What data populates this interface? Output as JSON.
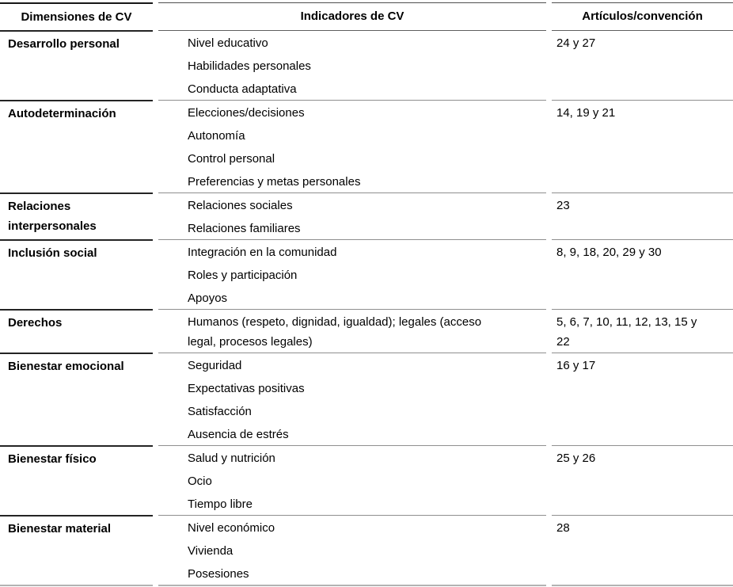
{
  "table": {
    "columns": [
      "Dimensiones de CV",
      "Indicadores de CV",
      "Artículos/convención"
    ],
    "rows": [
      {
        "dimension": "Desarrollo personal",
        "indicators": [
          "Nivel educativo",
          "Habilidades personales",
          "Conducta adaptativa"
        ],
        "articles": "24 y 27"
      },
      {
        "dimension": "Autodeterminación",
        "indicators": [
          "Elecciones/decisiones",
          "Autonomía",
          "Control personal",
          "Preferencias y metas personales"
        ],
        "articles": "14, 19 y 21"
      },
      {
        "dimension": "Relaciones interpersonales",
        "indicators": [
          "Relaciones sociales",
          "Relaciones familiares"
        ],
        "articles": "23"
      },
      {
        "dimension": "Inclusión social",
        "indicators": [
          "Integración en la comunidad",
          "Roles y participación",
          "Apoyos"
        ],
        "articles": "8, 9, 18, 20, 29 y 30"
      },
      {
        "dimension": "Derechos",
        "indicators": [
          "Humanos (respeto, dignidad, igualdad); legales (acceso legal, procesos legales)"
        ],
        "articles": "5, 6, 7, 10, 11, 12, 13, 15 y 22"
      },
      {
        "dimension": "Bienestar emocional",
        "indicators": [
          "Seguridad",
          "Expectativas positivas",
          "Satisfacción",
          "Ausencia de estrés"
        ],
        "articles": "16 y 17"
      },
      {
        "dimension": "Bienestar físico",
        "indicators": [
          "Salud y nutrición",
          "Ocio",
          "Tiempo libre"
        ],
        "articles": "25 y 26"
      },
      {
        "dimension": "Bienestar material",
        "indicators": [
          "Nivel económico",
          "Vivienda",
          "Posesiones"
        ],
        "articles": "28"
      }
    ],
    "colors": {
      "text": "#000000",
      "rule_dark": "#242424",
      "rule_gray": "#8f8f8f",
      "rule_bottom": "#b3b3b3",
      "background": "#ffffff"
    }
  }
}
